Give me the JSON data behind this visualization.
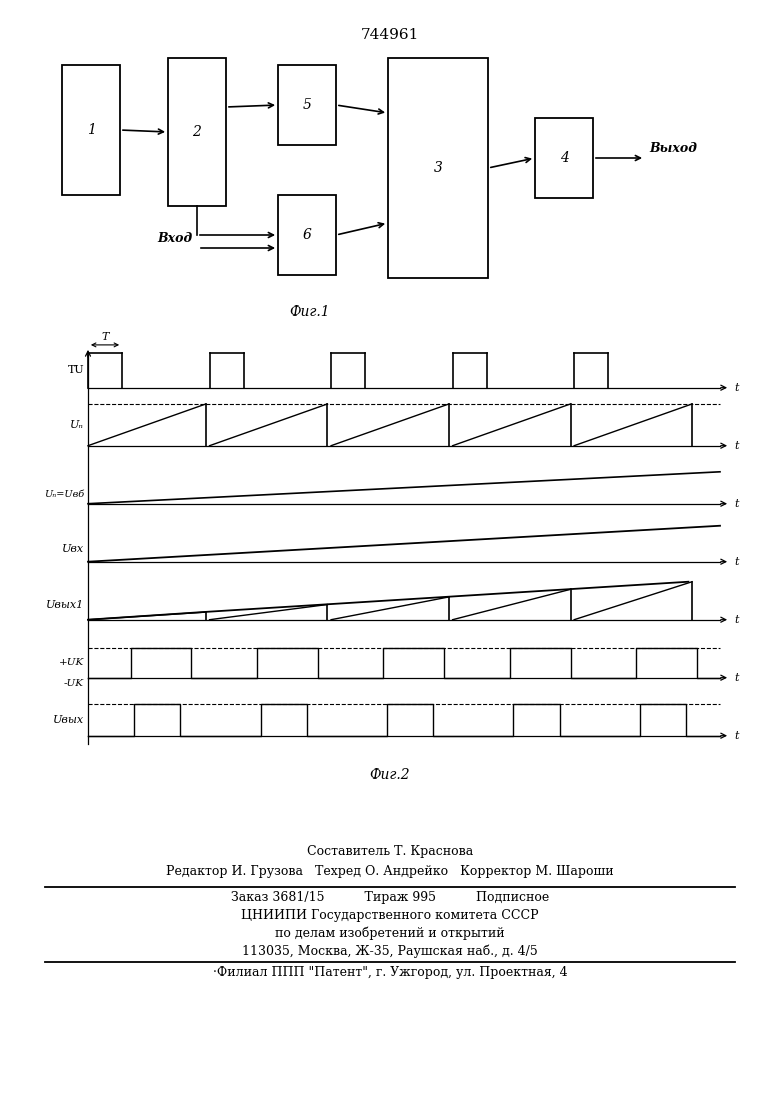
{
  "page_number": "744961",
  "bg_color": "#f5f5f0",
  "fig1_caption": "Фиг.1",
  "fig2_caption": "Фиг.2",
  "footer_line1": "Составитель Т. Краснова",
  "footer_line2": "Редактор И. Грузова   Техред О. Андрейко   Корректор М. Шароши",
  "footer_line3": "Заказ 3681/15          Тираж 995          Подписное",
  "footer_line4": "ЦНИИПИ Государственного комитета СССР",
  "footer_line5": "по делам изобретений и открытий",
  "footer_line6": "113035, Москва, Ж-35, Раушская наб., д. 4/5",
  "footer_line7": "·Филиал ППП \"Патент\", г. Ужгород, ул. Проектная, 4"
}
